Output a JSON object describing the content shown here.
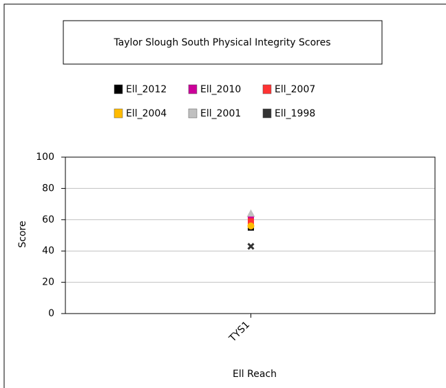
{
  "chart_data": {
    "type": "scatter",
    "title": "Taylor Slough South Physical Integrity Scores",
    "xlabel": "Ell Reach",
    "ylabel": "Score",
    "categories": [
      "TYS1"
    ],
    "series": [
      {
        "name": "Ell_2012",
        "color": "#000000",
        "marker": "square",
        "values": [
          55
        ]
      },
      {
        "name": "Ell_2010",
        "color": "#cc0099",
        "marker": "square",
        "values": [
          60
        ]
      },
      {
        "name": "Ell_2007",
        "color": "#ff3333",
        "marker": "square",
        "values": [
          59
        ]
      },
      {
        "name": "Ell_2004",
        "color": "#ffbb00",
        "marker": "circle",
        "values": [
          56
        ]
      },
      {
        "name": "Ell_2001",
        "color": "#c0c0c0",
        "marker": "triangle",
        "values": [
          64
        ]
      },
      {
        "name": "Ell_1998",
        "color": "#333333",
        "marker": "x",
        "values": [
          43
        ]
      }
    ],
    "ylim": [
      0,
      100
    ],
    "yticks": [
      0,
      20,
      40,
      60,
      80,
      100
    ],
    "grid": true
  }
}
